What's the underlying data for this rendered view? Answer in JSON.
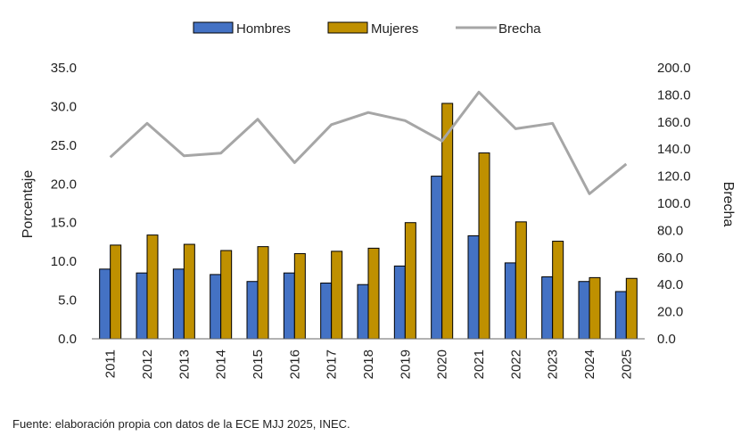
{
  "chart_data": {
    "type": "bar",
    "categories": [
      "2011",
      "2012",
      "2013",
      "2014",
      "2015",
      "2016",
      "2017",
      "2018",
      "2019",
      "2020",
      "2021",
      "2022",
      "2023",
      "2024",
      "2025"
    ],
    "series": [
      {
        "name": "Hombres",
        "type": "bar",
        "axis": "left",
        "color": "#4472c4",
        "values": [
          9.0,
          8.5,
          9.0,
          8.3,
          7.4,
          8.5,
          7.2,
          7.0,
          9.4,
          21.0,
          13.3,
          9.8,
          8.0,
          7.4,
          6.1
        ]
      },
      {
        "name": "Mujeres",
        "type": "bar",
        "axis": "left",
        "color": "#bf9000",
        "values": [
          12.1,
          13.4,
          12.2,
          11.4,
          11.9,
          11.0,
          11.3,
          11.7,
          15.0,
          30.4,
          24.0,
          15.1,
          12.6,
          7.9,
          7.8
        ]
      },
      {
        "name": "Brecha",
        "type": "line",
        "axis": "right",
        "color": "#a6a6a6",
        "values": [
          134,
          159,
          135,
          137,
          162,
          130,
          158,
          167,
          161,
          146,
          182,
          155,
          159,
          107,
          129
        ]
      }
    ],
    "ylabel": "Porcentaje",
    "y2label": "Brecha",
    "ylim": [
      0,
      35
    ],
    "y2lim": [
      0,
      200
    ],
    "yticks": [
      "0.0",
      "5.0",
      "10.0",
      "15.0",
      "20.0",
      "25.0",
      "30.0",
      "35.0"
    ],
    "y2ticks": [
      "0.0",
      "20.0",
      "40.0",
      "60.0",
      "80.0",
      "100.0",
      "120.0",
      "140.0",
      "160.0",
      "180.0",
      "200.0"
    ],
    "grid": false,
    "legend": "top-center",
    "source": "Fuente: elaboración propia con datos de la ECE MJJ 2025, INEC."
  }
}
